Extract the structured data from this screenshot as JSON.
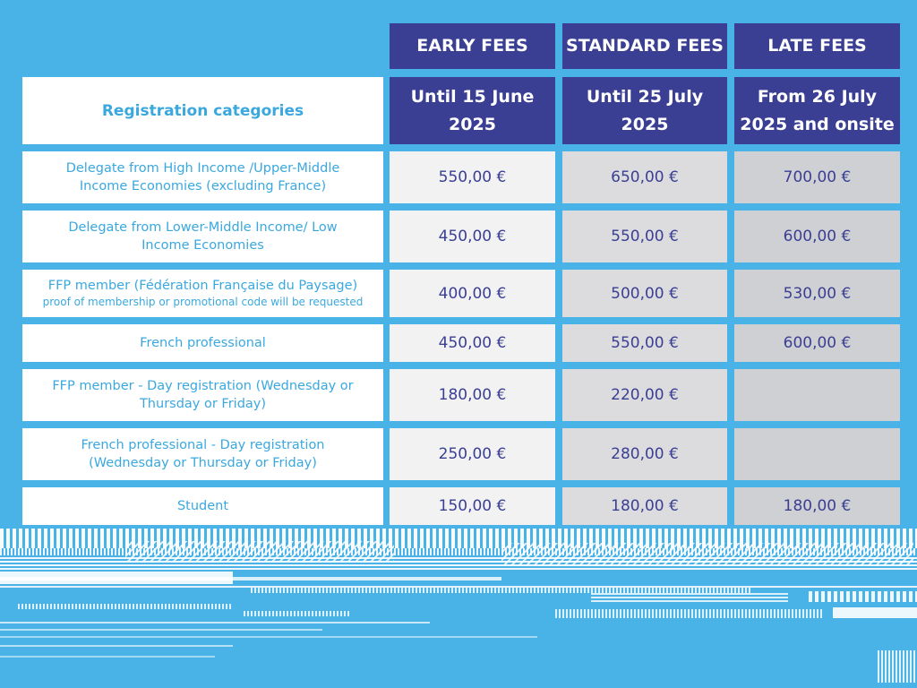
{
  "headers": {
    "early": "EARLY FEES",
    "standard": "STANDARD FEES",
    "late": "LATE FEES"
  },
  "subheaders": {
    "category": "Registration categories",
    "early_line1": "Until 15 June",
    "early_line2": "2025",
    "standard_line1": "Until 25 July",
    "standard_line2": "2025",
    "late_line1": "From 26 July",
    "late_line2": "2025 and onsite"
  },
  "rows": [
    {
      "category_line1": "Delegate from High Income /Upper-Middle",
      "category_line2": "Income Economies (excluding France)",
      "early": "550,00 €",
      "standard": "650,00 €",
      "late": "700,00 €"
    },
    {
      "category_line1": "Delegate from Lower-Middle Income/ Low",
      "category_line2": "Income Economies",
      "early": "450,00 €",
      "standard": "550,00 €",
      "late": "600,00 €"
    },
    {
      "category_line1": "FFP member (Fédération Française du Paysage)",
      "category_note": "proof of membership or promotional code will be requested",
      "early": "400,00 €",
      "standard": "500,00 €",
      "late": "530,00 €"
    },
    {
      "category_line1": "French professional",
      "early": "450,00 €",
      "standard": "550,00 €",
      "late": "600,00 €"
    },
    {
      "category_line1": "FFP member - Day registration (Wednesday or",
      "category_line2": "Thursday or Friday)",
      "early": "180,00 €",
      "standard": "220,00 €",
      "late": ""
    },
    {
      "category_line1": "French professional - Day registration",
      "category_line2": "(Wednesday or Thursday or Friday)",
      "early": "250,00 €",
      "standard": "280,00 €",
      "late": ""
    },
    {
      "category_line1": "Student",
      "early": "150,00 €",
      "standard": "180,00 €",
      "late": "180,00 €"
    }
  ],
  "colors": {
    "background": "#49b2e6",
    "header": "#3a3f93",
    "category_text": "#3aa8df",
    "value_text": "#3a3f93"
  }
}
